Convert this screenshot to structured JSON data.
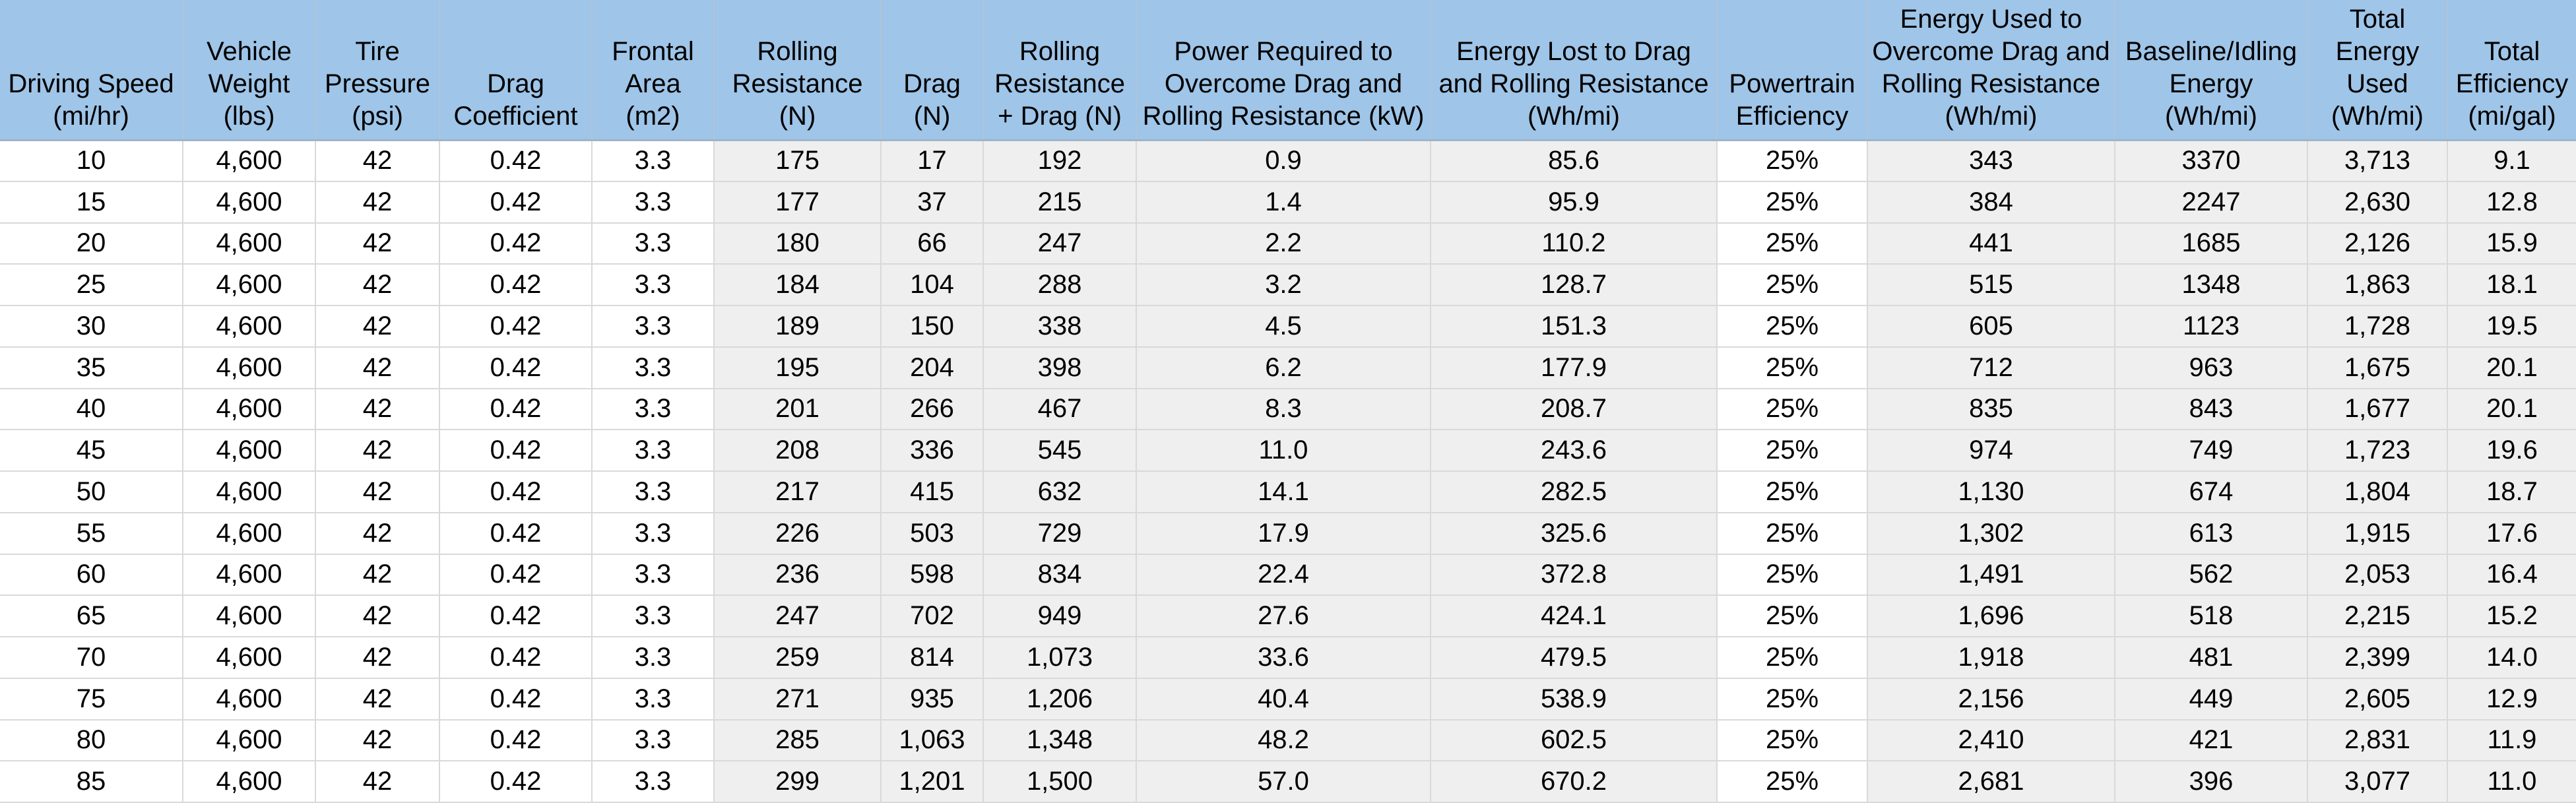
{
  "table": {
    "columns": [
      {
        "label": "Driving Speed\n(mi/hr)",
        "shaded": false
      },
      {
        "label": "Vehicle\nWeight\n(lbs)",
        "shaded": false
      },
      {
        "label": "Tire\nPressure\n(psi)",
        "shaded": false
      },
      {
        "label": "Drag\nCoefficient",
        "shaded": false
      },
      {
        "label": "Frontal\nArea\n(m2)",
        "shaded": false
      },
      {
        "label": "Rolling\nResistance\n(N)",
        "shaded": true
      },
      {
        "label": "Drag\n(N)",
        "shaded": true
      },
      {
        "label": "Rolling\nResistance\n+ Drag (N)",
        "shaded": true
      },
      {
        "label": "Power Required to\nOvercome Drag and\nRolling Resistance (kW)",
        "shaded": true
      },
      {
        "label": "Energy Lost to Drag\nand Rolling Resistance\n(Wh/mi)",
        "shaded": true
      },
      {
        "label": "Powertrain\nEfficiency",
        "shaded": false
      },
      {
        "label": "Energy Used to\nOvercome Drag and\nRolling Resistance\n(Wh/mi)",
        "shaded": true
      },
      {
        "label": "Baseline/Idling\nEnergy\n(Wh/mi)",
        "shaded": true
      },
      {
        "label": "Total\nEnergy\nUsed\n(Wh/mi)",
        "shaded": true
      },
      {
        "label": "Total\nEfficiency\n(mi/gal)",
        "shaded": true
      }
    ],
    "rows": [
      [
        "10",
        "4,600",
        "42",
        "0.42",
        "3.3",
        "175",
        "17",
        "192",
        "0.9",
        "85.6",
        "25%",
        "343",
        "3370",
        "3,713",
        "9.1"
      ],
      [
        "15",
        "4,600",
        "42",
        "0.42",
        "3.3",
        "177",
        "37",
        "215",
        "1.4",
        "95.9",
        "25%",
        "384",
        "2247",
        "2,630",
        "12.8"
      ],
      [
        "20",
        "4,600",
        "42",
        "0.42",
        "3.3",
        "180",
        "66",
        "247",
        "2.2",
        "110.2",
        "25%",
        "441",
        "1685",
        "2,126",
        "15.9"
      ],
      [
        "25",
        "4,600",
        "42",
        "0.42",
        "3.3",
        "184",
        "104",
        "288",
        "3.2",
        "128.7",
        "25%",
        "515",
        "1348",
        "1,863",
        "18.1"
      ],
      [
        "30",
        "4,600",
        "42",
        "0.42",
        "3.3",
        "189",
        "150",
        "338",
        "4.5",
        "151.3",
        "25%",
        "605",
        "1123",
        "1,728",
        "19.5"
      ],
      [
        "35",
        "4,600",
        "42",
        "0.42",
        "3.3",
        "195",
        "204",
        "398",
        "6.2",
        "177.9",
        "25%",
        "712",
        "963",
        "1,675",
        "20.1"
      ],
      [
        "40",
        "4,600",
        "42",
        "0.42",
        "3.3",
        "201",
        "266",
        "467",
        "8.3",
        "208.7",
        "25%",
        "835",
        "843",
        "1,677",
        "20.1"
      ],
      [
        "45",
        "4,600",
        "42",
        "0.42",
        "3.3",
        "208",
        "336",
        "545",
        "11.0",
        "243.6",
        "25%",
        "974",
        "749",
        "1,723",
        "19.6"
      ],
      [
        "50",
        "4,600",
        "42",
        "0.42",
        "3.3",
        "217",
        "415",
        "632",
        "14.1",
        "282.5",
        "25%",
        "1,130",
        "674",
        "1,804",
        "18.7"
      ],
      [
        "55",
        "4,600",
        "42",
        "0.42",
        "3.3",
        "226",
        "503",
        "729",
        "17.9",
        "325.6",
        "25%",
        "1,302",
        "613",
        "1,915",
        "17.6"
      ],
      [
        "60",
        "4,600",
        "42",
        "0.42",
        "3.3",
        "236",
        "598",
        "834",
        "22.4",
        "372.8",
        "25%",
        "1,491",
        "562",
        "2,053",
        "16.4"
      ],
      [
        "65",
        "4,600",
        "42",
        "0.42",
        "3.3",
        "247",
        "702",
        "949",
        "27.6",
        "424.1",
        "25%",
        "1,696",
        "518",
        "2,215",
        "15.2"
      ],
      [
        "70",
        "4,600",
        "42",
        "0.42",
        "3.3",
        "259",
        "814",
        "1,073",
        "33.6",
        "479.5",
        "25%",
        "1,918",
        "481",
        "2,399",
        "14.0"
      ],
      [
        "75",
        "4,600",
        "42",
        "0.42",
        "3.3",
        "271",
        "935",
        "1,206",
        "40.4",
        "538.9",
        "25%",
        "2,156",
        "449",
        "2,605",
        "12.9"
      ],
      [
        "80",
        "4,600",
        "42",
        "0.42",
        "3.3",
        "285",
        "1,063",
        "1,348",
        "48.2",
        "602.5",
        "25%",
        "2,410",
        "421",
        "2,831",
        "11.9"
      ],
      [
        "85",
        "4,600",
        "42",
        "0.42",
        "3.3",
        "299",
        "1,201",
        "1,500",
        "57.0",
        "670.2",
        "25%",
        "2,681",
        "396",
        "3,077",
        "11.0"
      ]
    ]
  },
  "colors": {
    "header_bg": "#9fc5e8",
    "header_border": "#9fb4c8",
    "shaded_cell_bg": "#efefef",
    "cell_bg": "#ffffff",
    "grid_line": "#d9d9d9",
    "text": "#000000"
  }
}
